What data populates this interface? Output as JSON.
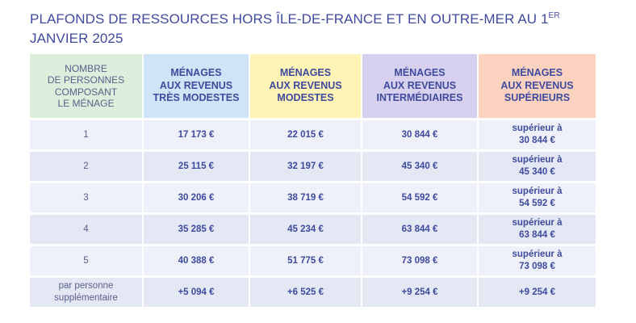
{
  "title": {
    "text": "PLAFONDS DE RESSOURCES HORS ÎLE-DE-FRANCE ET EN OUTRE-MER AU 1",
    "superscript": "ER",
    "line2": "JANVIER 2025"
  },
  "table": {
    "headers": [
      {
        "lines": [
          "NOMBRE",
          "DE PERSONNES",
          "COMPOSANT",
          "LE MÉNAGE"
        ],
        "color": "#dcefdc"
      },
      {
        "lines": [
          "MÉNAGES",
          "AUX REVENUS",
          "TRÈS MODESTES"
        ],
        "color": "#cfe4f7"
      },
      {
        "lines": [
          "MÉNAGES",
          "AUX REVENUS",
          "MODESTES"
        ],
        "color": "#fff3b6"
      },
      {
        "lines": [
          "MÉNAGES",
          "AUX REVENUS",
          "INTERMÉDIAIRES"
        ],
        "color": "#d8d0ef"
      },
      {
        "lines": [
          "MÉNAGES",
          "AUX REVENUS",
          "SUPÉRIEURS"
        ],
        "color": "#fbd2c0"
      }
    ],
    "rows": [
      {
        "persons": "1",
        "tres_modestes": "17 173 €",
        "modestes": "22 015 €",
        "intermediaires": "30 844 €",
        "superieurs": [
          "supérieur à",
          "30 844 €"
        ]
      },
      {
        "persons": "2",
        "tres_modestes": "25 115 €",
        "modestes": "32 197 €",
        "intermediaires": "45 340 €",
        "superieurs": [
          "supérieur à",
          "45 340 €"
        ]
      },
      {
        "persons": "3",
        "tres_modestes": "30 206 €",
        "modestes": "38 719 €",
        "intermediaires": "54 592 €",
        "superieurs": [
          "supérieur à",
          "54 592 €"
        ]
      },
      {
        "persons": "4",
        "tres_modestes": "35 285 €",
        "modestes": "45 234 €",
        "intermediaires": "63 844 €",
        "superieurs": [
          "supérieur à",
          "63 844 €"
        ]
      },
      {
        "persons": "5",
        "tres_modestes": "40 388 €",
        "modestes": "51 775 €",
        "intermediaires": "73 098 €",
        "superieurs": [
          "supérieur à",
          "73 098 €"
        ]
      }
    ],
    "extra_row": {
      "persons": [
        "par personne",
        "supplémentaire"
      ],
      "tres_modestes": "+5 094 €",
      "modestes": "+6 525 €",
      "intermediaires": "+9 254 €",
      "superieurs": "+9 254 €"
    }
  }
}
